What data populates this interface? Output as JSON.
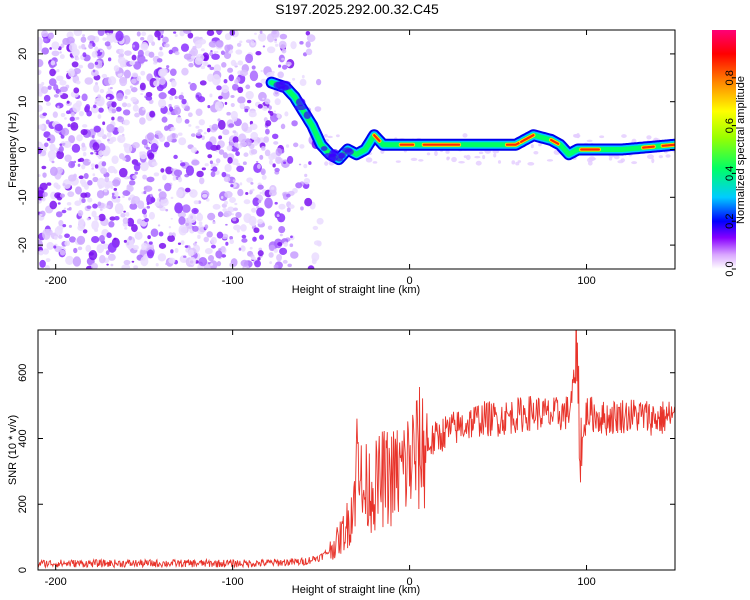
{
  "title": "S197.2025.292.00.32.C45",
  "chart_data": [
    {
      "type": "heatmap",
      "xlabel": "Height of straight line (km)",
      "ylabel": "Frequency (Hz)",
      "xlim": [
        -210,
        150
      ],
      "ylim": [
        -25,
        25
      ],
      "xticks": [
        -200,
        -100,
        0,
        100
      ],
      "yticks": [
        -20,
        -10,
        0,
        10,
        20
      ],
      "colorbar": {
        "label": "Normalized spectral amplitude",
        "range": [
          0,
          1
        ],
        "ticks": [
          "0.0",
          "0.2",
          "0.4",
          "0.6",
          "0.8"
        ],
        "colors": [
          "#ffffff",
          "#d9a6ff",
          "#8800ff",
          "#0000ff",
          "#00ccff",
          "#00ff66",
          "#99ff00",
          "#ffff00",
          "#ff8800",
          "#ff0000",
          "#ff0077"
        ]
      },
      "ridge": {
        "x": [
          -78,
          -70,
          -65,
          -60,
          -55,
          -50,
          -45,
          -40,
          -35,
          -30,
          -25,
          -20,
          -15,
          -10,
          0,
          20,
          40,
          60,
          65,
          70,
          80,
          85,
          90,
          95,
          100,
          120,
          150
        ],
        "y": [
          14,
          13,
          11,
          8,
          5,
          1,
          -1,
          -2,
          0,
          -1,
          0,
          3,
          1,
          1,
          1,
          1,
          1,
          1,
          2,
          3,
          2,
          1,
          -1,
          0,
          0,
          0,
          1
        ]
      }
    },
    {
      "type": "line",
      "xlabel": "Height of straight line (km)",
      "ylabel": "SNR (10 * v/v)",
      "xlim": [
        -210,
        150
      ],
      "ylim": [
        0,
        730
      ],
      "xticks": [
        -200,
        -100,
        0,
        100
      ],
      "yticks": [
        0,
        200,
        400,
        600
      ],
      "color": "#e8332a",
      "series": [
        {
          "name": "SNR",
          "x": [
            -210,
            -180,
            -150,
            -120,
            -90,
            -60,
            -50,
            -45,
            -40,
            -35,
            -32,
            -30,
            -28,
            -25,
            -20,
            -15,
            -10,
            -5,
            0,
            5,
            10,
            15,
            20,
            30,
            40,
            50,
            60,
            70,
            80,
            90,
            94,
            95,
            96,
            100,
            110,
            120,
            130,
            140,
            150
          ],
          "y": [
            20,
            20,
            20,
            20,
            20,
            25,
            40,
            60,
            90,
            140,
            200,
            300,
            180,
            250,
            250,
            280,
            280,
            300,
            330,
            360,
            380,
            400,
            420,
            440,
            460,
            460,
            470,
            480,
            470,
            480,
            600,
            700,
            300,
            480,
            460,
            470,
            470,
            460,
            470
          ]
        }
      ]
    }
  ]
}
